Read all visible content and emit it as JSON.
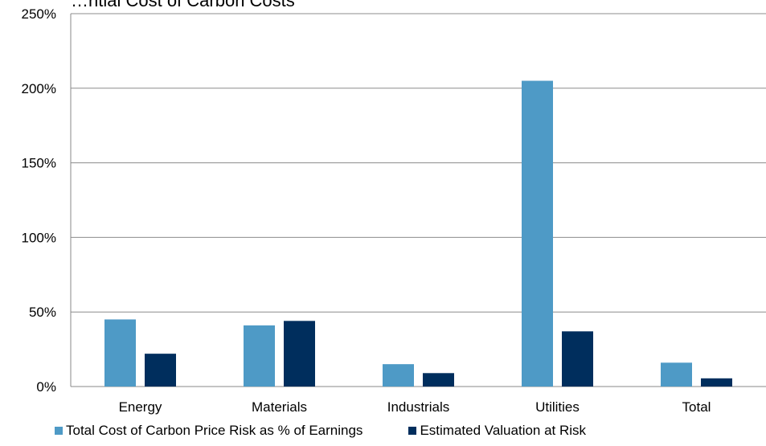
{
  "chart_data": {
    "type": "bar",
    "title": "…ntial Cost of Carbon Costs",
    "categories": [
      "Energy",
      "Materials",
      "Industrials",
      "Utilities",
      "Total"
    ],
    "series": [
      {
        "name": "Total Cost of Carbon Price Risk as % of Earnings",
        "color": "#4e9ac6",
        "values": [
          45,
          41,
          15,
          205,
          16
        ]
      },
      {
        "name": "Estimated Valuation at Risk",
        "color": "#002e5d",
        "values": [
          22,
          44,
          9,
          37,
          5.5
        ]
      }
    ],
    "ylim": [
      0,
      250
    ],
    "yticks": [
      "0%",
      "50%",
      "100%",
      "150%",
      "200%",
      "250%"
    ],
    "ytick_values": [
      0,
      50,
      100,
      150,
      200,
      250
    ],
    "grid": true,
    "legend_position": "bottom"
  }
}
